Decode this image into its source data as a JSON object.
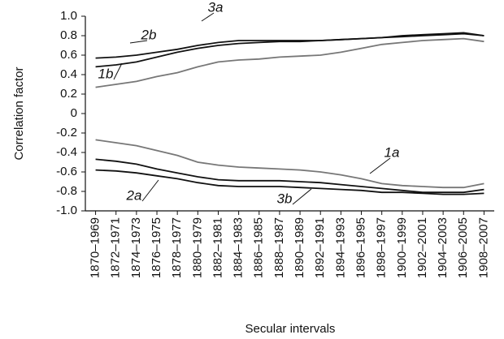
{
  "chart_data": {
    "type": "line",
    "y_label": "Correlation factor",
    "x_label": "Secular intervals",
    "categories": [
      "1870–1969",
      "1872–1971",
      "1874–1973",
      "1876–1975",
      "1878–1977",
      "1880–1979",
      "1882–1981",
      "1884–1983",
      "1886–1985",
      "1888–1987",
      "1890–1989",
      "1892–1991",
      "1894–1993",
      "1896–1995",
      "1898–1997",
      "1900–1999",
      "1902–2001",
      "1904–2003",
      "1906–2005",
      "1908–2007"
    ],
    "series": [
      {
        "name": "3a",
        "color": "#111111",
        "values": [
          0.57,
          0.58,
          0.6,
          0.63,
          0.66,
          0.7,
          0.73,
          0.75,
          0.75,
          0.75,
          0.75,
          0.75,
          0.76,
          0.77,
          0.78,
          0.79,
          0.8,
          0.81,
          0.82,
          0.8
        ]
      },
      {
        "name": "2b",
        "color": "#111111",
        "values": [
          0.48,
          0.5,
          0.53,
          0.58,
          0.63,
          0.67,
          0.7,
          0.72,
          0.73,
          0.74,
          0.74,
          0.75,
          0.76,
          0.77,
          0.78,
          0.8,
          0.81,
          0.82,
          0.83,
          0.8
        ]
      },
      {
        "name": "1b",
        "color": "#777777",
        "values": [
          0.27,
          0.3,
          0.33,
          0.38,
          0.42,
          0.48,
          0.53,
          0.55,
          0.56,
          0.58,
          0.59,
          0.6,
          0.63,
          0.67,
          0.71,
          0.73,
          0.75,
          0.76,
          0.77,
          0.74
        ]
      },
      {
        "name": "1a",
        "color": "#777777",
        "values": [
          -0.27,
          -0.3,
          -0.33,
          -0.38,
          -0.43,
          -0.5,
          -0.53,
          -0.55,
          -0.56,
          -0.57,
          -0.58,
          -0.6,
          -0.63,
          -0.67,
          -0.72,
          -0.74,
          -0.75,
          -0.76,
          -0.76,
          -0.72
        ]
      },
      {
        "name": "2a",
        "color": "#111111",
        "values": [
          -0.47,
          -0.49,
          -0.52,
          -0.57,
          -0.61,
          -0.65,
          -0.68,
          -0.69,
          -0.69,
          -0.69,
          -0.7,
          -0.71,
          -0.73,
          -0.75,
          -0.77,
          -0.79,
          -0.81,
          -0.81,
          -0.81,
          -0.78
        ]
      },
      {
        "name": "3b",
        "color": "#111111",
        "values": [
          -0.58,
          -0.59,
          -0.61,
          -0.64,
          -0.67,
          -0.71,
          -0.74,
          -0.75,
          -0.75,
          -0.75,
          -0.76,
          -0.77,
          -0.78,
          -0.79,
          -0.81,
          -0.81,
          -0.82,
          -0.83,
          -0.83,
          -0.82
        ]
      }
    ],
    "ylim": [
      -1,
      1
    ],
    "yticks": [
      {
        "value": -1,
        "label": "-1.0"
      },
      -0.8,
      -0.6,
      -0.4,
      -0.2,
      0,
      0.2,
      0.4,
      0.6,
      0.8,
      {
        "value": 1,
        "label": "1.0"
      }
    ],
    "grid": false
  }
}
